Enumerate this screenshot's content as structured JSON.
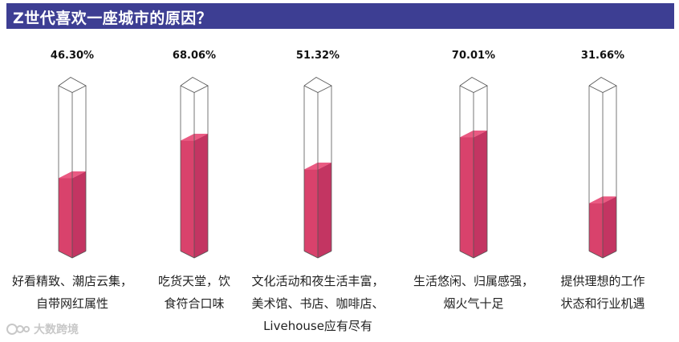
{
  "header": {
    "title": "Z世代喜欢一座城市的原因？"
  },
  "watermark": {
    "text": "大数跨境"
  },
  "colors": {
    "bar_fill": "#d9426c",
    "bar_side": "#c33562",
    "bar_top": "#ea5a82",
    "outline": "#555555",
    "title_bg": "#3d3e93"
  },
  "chart_data": {
    "type": "bar",
    "title": "Z世代喜欢一座城市的原因？",
    "unit": "%",
    "ylim": [
      0,
      100
    ],
    "categories": [
      [
        "好看精致、潮店云集，",
        "自带网红属性"
      ],
      [
        "吃货天堂，饮",
        "食符合口味"
      ],
      [
        "文化活动和夜生活丰富，",
        "美术馆、书店、咖啡店、",
        "Livehouse应有尽有"
      ],
      [
        "生活悠闲、归属感强，",
        "烟火气十足"
      ],
      [
        "提供理想的工作",
        "状态和行业机遇"
      ]
    ],
    "values": [
      46.3,
      68.06,
      51.32,
      70.01,
      31.66
    ],
    "value_labels": [
      "46.30%",
      "68.06%",
      "51.32%",
      "70.01%",
      "31.66%"
    ],
    "grid": false,
    "legend": "none"
  }
}
